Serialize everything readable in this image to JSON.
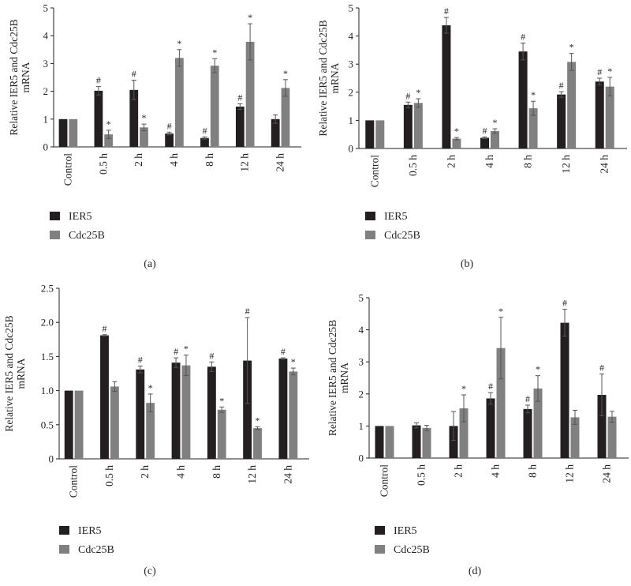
{
  "colors": {
    "ier5": "#231f20",
    "cdc25b": "#808080",
    "axis": "#231f20",
    "error": "#555555"
  },
  "chart_data": [
    {
      "panel_label": "(a)",
      "type": "bar",
      "title": "",
      "ylabel_line1": "Relative IER5 and Cdc25B",
      "ylabel_line2": "mRNA",
      "xlabel": "",
      "ylim": [
        0,
        5
      ],
      "yticks": [
        "0",
        "1",
        "2",
        "3",
        "4",
        "5"
      ],
      "categories": [
        "Control",
        "0.5 h",
        "2 h",
        "4 h",
        "8 h",
        "12 h",
        "24 h"
      ],
      "legend_position": "bottom-left",
      "series": [
        {
          "name": "IER5",
          "color_key": "ier5",
          "values": [
            1.0,
            2.02,
            2.05,
            0.48,
            0.32,
            1.45,
            1.0
          ],
          "errors": [
            0.0,
            0.15,
            0.35,
            0.05,
            0.04,
            0.1,
            0.15
          ],
          "markers": [
            "",
            "#",
            "#",
            "#",
            "#",
            "#",
            ""
          ]
        },
        {
          "name": "Cdc25B",
          "color_key": "cdc25b",
          "values": [
            1.0,
            0.45,
            0.7,
            3.2,
            2.92,
            3.78,
            2.12
          ],
          "errors": [
            0.0,
            0.15,
            0.12,
            0.3,
            0.25,
            0.65,
            0.3
          ],
          "markers": [
            "",
            "*",
            "*",
            "*",
            "*",
            "*",
            "*"
          ]
        }
      ]
    },
    {
      "panel_label": "(b)",
      "type": "bar",
      "title": "",
      "ylabel_line1": "Relative IER5 and Cdc25B",
      "ylabel_line2": "mRNA",
      "xlabel": "",
      "ylim": [
        0,
        5
      ],
      "yticks": [
        "0",
        "1",
        "2",
        "3",
        "4",
        "5"
      ],
      "categories": [
        "Control",
        "0.5 h",
        "2 h",
        "4 h",
        "8 h",
        "12 h",
        "24 h"
      ],
      "legend_position": "bottom-left",
      "series": [
        {
          "name": "IER5",
          "color_key": "ier5",
          "values": [
            1.0,
            1.55,
            4.38,
            0.38,
            3.45,
            1.92,
            2.38
          ],
          "errors": [
            0.0,
            0.1,
            0.28,
            0.03,
            0.3,
            0.1,
            0.12
          ],
          "markers": [
            "",
            "#",
            "#",
            "#",
            "#",
            "#",
            "#"
          ]
        },
        {
          "name": "Cdc25B",
          "color_key": "cdc25b",
          "values": [
            1.0,
            1.62,
            0.35,
            0.62,
            1.43,
            3.08,
            2.2
          ],
          "errors": [
            0.0,
            0.15,
            0.04,
            0.08,
            0.25,
            0.3,
            0.33
          ],
          "markers": [
            "",
            "*",
            "*",
            "*",
            "*",
            "*",
            "*"
          ]
        }
      ]
    },
    {
      "panel_label": "(c)",
      "type": "bar",
      "title": "",
      "ylabel_line1": "Relative IER5 and Cdc25B",
      "ylabel_line2": "mRNA",
      "xlabel": "",
      "ylim": [
        0,
        2.5
      ],
      "yticks": [
        "0",
        "0.5",
        "1.0",
        "1.5",
        "2.0",
        "2.5"
      ],
      "categories": [
        "Control",
        "0.5 h",
        "2 h",
        "4 h",
        "8 h",
        "12 h",
        "24 h"
      ],
      "legend_position": "bottom-left",
      "series": [
        {
          "name": "IER5",
          "color_key": "ier5",
          "values": [
            1.0,
            1.81,
            1.31,
            1.41,
            1.35,
            1.44,
            1.47
          ],
          "errors": [
            0.0,
            0.01,
            0.05,
            0.07,
            0.07,
            0.63,
            0.01
          ],
          "markers": [
            "",
            "#",
            "#",
            "#",
            "#",
            "#",
            "#"
          ]
        },
        {
          "name": "Cdc25B",
          "color_key": "cdc25b",
          "values": [
            1.0,
            1.06,
            0.82,
            1.37,
            0.72,
            0.45,
            1.28
          ],
          "errors": [
            0.0,
            0.07,
            0.13,
            0.15,
            0.04,
            0.02,
            0.05
          ],
          "markers": [
            "",
            "",
            "*",
            "*",
            "*",
            "*",
            "*"
          ]
        }
      ]
    },
    {
      "panel_label": "(d)",
      "type": "bar",
      "title": "",
      "ylabel_line1": "Relative IER5 and Cdc25B",
      "ylabel_line2": "mRNA",
      "xlabel": "",
      "ylim": [
        0,
        5
      ],
      "yticks": [
        "0",
        "1",
        "2",
        "3",
        "4",
        "5"
      ],
      "categories": [
        "Control",
        "0.5 h",
        "2 h",
        "4 h",
        "8 h",
        "12 h",
        "24 h"
      ],
      "legend_position": "bottom-left",
      "series": [
        {
          "name": "IER5",
          "color_key": "ier5",
          "values": [
            1.0,
            1.02,
            1.0,
            1.86,
            1.53,
            4.22,
            1.97
          ],
          "errors": [
            0.0,
            0.08,
            0.45,
            0.18,
            0.12,
            0.42,
            0.65
          ],
          "markers": [
            "",
            "",
            "",
            "#",
            "#",
            "#",
            "#"
          ]
        },
        {
          "name": "Cdc25B",
          "color_key": "cdc25b",
          "values": [
            1.0,
            0.94,
            1.55,
            3.43,
            2.17,
            1.27,
            1.29
          ],
          "errors": [
            0.0,
            0.08,
            0.42,
            0.96,
            0.4,
            0.22,
            0.17
          ],
          "markers": [
            "",
            "",
            "*",
            "*",
            "*",
            "",
            ""
          ]
        }
      ]
    }
  ]
}
